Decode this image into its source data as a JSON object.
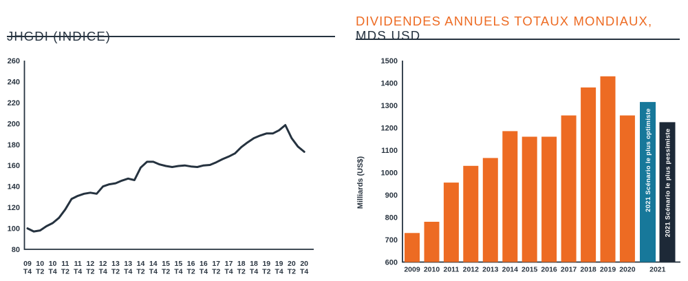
{
  "colors": {
    "orange": "#ED6B23",
    "teal": "#17789A",
    "dark_navy": "#1D2937",
    "ink": "#25323F",
    "tick_text": "#293440"
  },
  "left_panel": {
    "title": "JHGDI (INDICE)"
  },
  "right_panel": {
    "title_line1": "DIVIDENDES ANNUELS TOTAUX MONDIAUX,",
    "title_line2": "MDS USD"
  },
  "chart_data": [
    {
      "type": "line",
      "title": "JHGDI (INDICE)",
      "x_unit": "trimestres (2009 T4 – 2020 T4)",
      "x_tick_labels": [
        "09 T4",
        "10 T2",
        "10 T4",
        "11 T2",
        "11 T4",
        "12 T2",
        "12 T4",
        "13 T2",
        "13 T4",
        "14 T2",
        "14 T4",
        "15 T2",
        "15 T4",
        "16 T2",
        "16 T4",
        "17 T2",
        "17 T4",
        "18 T2",
        "18 T4",
        "19 T2",
        "19 T4",
        "20 T2",
        "20 T4"
      ],
      "points_per_tick": 2,
      "values": [
        100,
        97,
        98,
        102,
        105,
        110,
        118,
        128,
        131,
        133,
        134,
        133,
        140,
        142,
        143,
        145.5,
        147.5,
        146,
        158,
        163.5,
        163.5,
        161,
        159.5,
        158.5,
        159.5,
        160,
        159,
        158.5,
        160,
        160.5,
        163,
        166,
        168.5,
        171.5,
        177.5,
        182,
        186,
        188.5,
        190.5,
        190.5,
        193.5,
        198.5,
        186,
        178,
        173
      ],
      "ylim": [
        80,
        260
      ],
      "ytick_labels": [
        "260",
        "240",
        "220",
        "200",
        "180",
        "160",
        "140",
        "120",
        "100",
        "80"
      ],
      "grid": false,
      "legend": "none"
    },
    {
      "type": "bar",
      "title": "DIVIDENDES ANNUELS TOTAUX MONDIAUX, MDS USD",
      "ylabel": "Milliards (US$)",
      "ylim": [
        600,
        1500
      ],
      "ytick_labels": [
        "1500",
        "1400",
        "1300",
        "1200",
        "1100",
        "1000",
        "900",
        "800",
        "700",
        "600"
      ],
      "grid": false,
      "legend": "none",
      "shared_last_label": "2021",
      "bars": [
        {
          "label": "2009",
          "value": 730,
          "color": "orange"
        },
        {
          "label": "2010",
          "value": 780,
          "color": "orange"
        },
        {
          "label": "2011",
          "value": 955,
          "color": "orange"
        },
        {
          "label": "2012",
          "value": 1030,
          "color": "orange"
        },
        {
          "label": "2013",
          "value": 1065,
          "color": "orange"
        },
        {
          "label": "2014",
          "value": 1185,
          "color": "orange"
        },
        {
          "label": "2015",
          "value": 1160,
          "color": "orange"
        },
        {
          "label": "2016",
          "value": 1160,
          "color": "orange"
        },
        {
          "label": "2017",
          "value": 1255,
          "color": "orange"
        },
        {
          "label": "2018",
          "value": 1380,
          "color": "orange"
        },
        {
          "label": "2019",
          "value": 1430,
          "color": "orange"
        },
        {
          "label": "2020",
          "value": 1255,
          "color": "orange"
        },
        {
          "label": "2021",
          "value": 1315,
          "color": "teal",
          "bar_text": "2021 Scénario le plus optimiste"
        },
        {
          "label": "2021",
          "value": 1225,
          "color": "dark_navy",
          "bar_text": "2021 Scénario le plus pessimiste"
        }
      ]
    }
  ]
}
